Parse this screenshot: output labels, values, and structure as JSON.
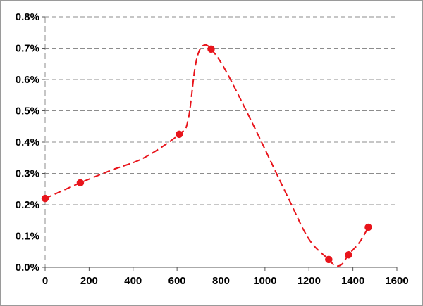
{
  "chart_data": {
    "type": "scatter",
    "title": "",
    "xlabel": "",
    "ylabel": "",
    "xlim": [
      0,
      1600
    ],
    "ylim": [
      0,
      0.008
    ],
    "x_ticks": [
      0,
      200,
      400,
      600,
      800,
      1000,
      1200,
      1400,
      1600
    ],
    "x_tick_labels": [
      "0",
      "200",
      "400",
      "600",
      "800",
      "1000",
      "1200",
      "1400",
      "1600"
    ],
    "y_ticks": [
      0,
      0.001,
      0.002,
      0.003,
      0.004,
      0.005,
      0.006,
      0.007,
      0.008
    ],
    "y_tick_labels": [
      "0.0%",
      "0.1%",
      "0.2%",
      "0.3%",
      "0.4%",
      "0.5%",
      "0.6%",
      "0.7%",
      "0.8%"
    ],
    "grid": {
      "horizontal": true,
      "vertical": false,
      "style": "dashed"
    },
    "legend": "none",
    "series": [
      {
        "color": "#e8141b",
        "line_style": "dashed-smooth",
        "marker": "circle",
        "points": [
          {
            "x": 0,
            "y": 0.0022
          },
          {
            "x": 160,
            "y": 0.0027
          },
          {
            "x": 610,
            "y": 0.00425
          },
          {
            "x": 755,
            "y": 0.00697
          },
          {
            "x": 1290,
            "y": 0.00025
          },
          {
            "x": 1380,
            "y": 0.0004
          },
          {
            "x": 1470,
            "y": 0.00128
          }
        ],
        "curve_points": [
          {
            "x": 0,
            "y": 0.0022
          },
          {
            "x": 160,
            "y": 0.0027
          },
          {
            "x": 300,
            "y": 0.0031
          },
          {
            "x": 450,
            "y": 0.0035
          },
          {
            "x": 610,
            "y": 0.00425
          },
          {
            "x": 650,
            "y": 0.0047
          },
          {
            "x": 680,
            "y": 0.0063
          },
          {
            "x": 700,
            "y": 0.0069
          },
          {
            "x": 725,
            "y": 0.0071
          },
          {
            "x": 755,
            "y": 0.00697
          },
          {
            "x": 820,
            "y": 0.0063
          },
          {
            "x": 950,
            "y": 0.0045
          },
          {
            "x": 1100,
            "y": 0.0023
          },
          {
            "x": 1200,
            "y": 0.0009
          },
          {
            "x": 1290,
            "y": 0.00025
          },
          {
            "x": 1320,
            "y": 5e-05
          },
          {
            "x": 1350,
            "y": 0.0001
          },
          {
            "x": 1380,
            "y": 0.0004
          },
          {
            "x": 1430,
            "y": 0.0008
          },
          {
            "x": 1470,
            "y": 0.00128
          }
        ]
      }
    ]
  }
}
